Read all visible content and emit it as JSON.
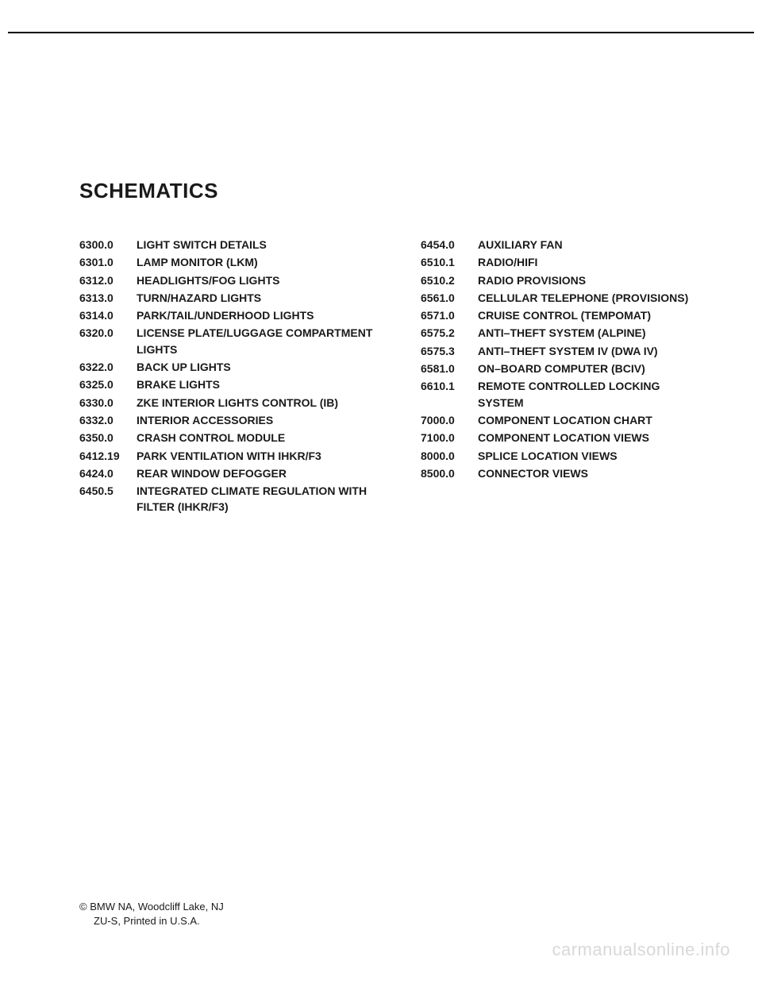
{
  "heading": "SCHEMATICS",
  "left_column": [
    {
      "code": "6300.0",
      "label": "LIGHT SWITCH DETAILS"
    },
    {
      "code": "6301.0",
      "label": "LAMP MONITOR (LKM)"
    },
    {
      "code": "6312.0",
      "label": "HEADLIGHTS/FOG LIGHTS"
    },
    {
      "code": "6313.0",
      "label": "TURN/HAZARD LIGHTS"
    },
    {
      "code": "6314.0",
      "label": "PARK/TAIL/UNDERHOOD LIGHTS"
    },
    {
      "code": "6320.0",
      "label": "LICENSE PLATE/LUGGAGE COMPARTMENT LIGHTS"
    },
    {
      "code": "6322.0",
      "label": "BACK UP LIGHTS"
    },
    {
      "code": "6325.0",
      "label": "BRAKE LIGHTS"
    },
    {
      "code": "6330.0",
      "label": "ZKE INTERIOR LIGHTS CONTROL (IB)"
    },
    {
      "code": "6332.0",
      "label": "INTERIOR ACCESSORIES"
    },
    {
      "code": "6350.0",
      "label": "CRASH CONTROL MODULE"
    },
    {
      "code": "6412.19",
      "label": "PARK VENTILATION WITH IHKR/F3"
    },
    {
      "code": "6424.0",
      "label": "REAR WINDOW DEFOGGER"
    },
    {
      "code": "6450.5",
      "label": "INTEGRATED CLIMATE REGULATION WITH FILTER (IHKR/F3)"
    }
  ],
  "right_column": [
    {
      "code": "6454.0",
      "label": "AUXILIARY FAN"
    },
    {
      "code": "6510.1",
      "label": "RADIO/HIFI"
    },
    {
      "code": "6510.2",
      "label": "RADIO PROVISIONS"
    },
    {
      "code": "6561.0",
      "label": "CELLULAR TELEPHONE (PROVISIONS)"
    },
    {
      "code": "6571.0",
      "label": "CRUISE CONTROL (TEMPOMAT)"
    },
    {
      "code": "6575.2",
      "label": "ANTI–THEFT SYSTEM (ALPINE)"
    },
    {
      "code": "6575.3",
      "label": "ANTI–THEFT SYSTEM IV (DWA IV)"
    },
    {
      "code": "6581.0",
      "label": "ON–BOARD COMPUTER (BCIV)"
    },
    {
      "code": "6610.1",
      "label": "REMOTE CONTROLLED LOCKING SYSTEM"
    },
    {
      "code": "7000.0",
      "label": "COMPONENT LOCATION CHART"
    },
    {
      "code": "7100.0",
      "label": "COMPONENT LOCATION VIEWS"
    },
    {
      "code": "8000.0",
      "label": "SPLICE LOCATION VIEWS"
    },
    {
      "code": "8500.0",
      "label": "CONNECTOR VIEWS"
    }
  ],
  "footer": {
    "line1": "© BMW NA, Woodcliff Lake, NJ",
    "line2": "ZU-S, Printed in U.S.A."
  },
  "watermark": "carmanualsonline.info"
}
